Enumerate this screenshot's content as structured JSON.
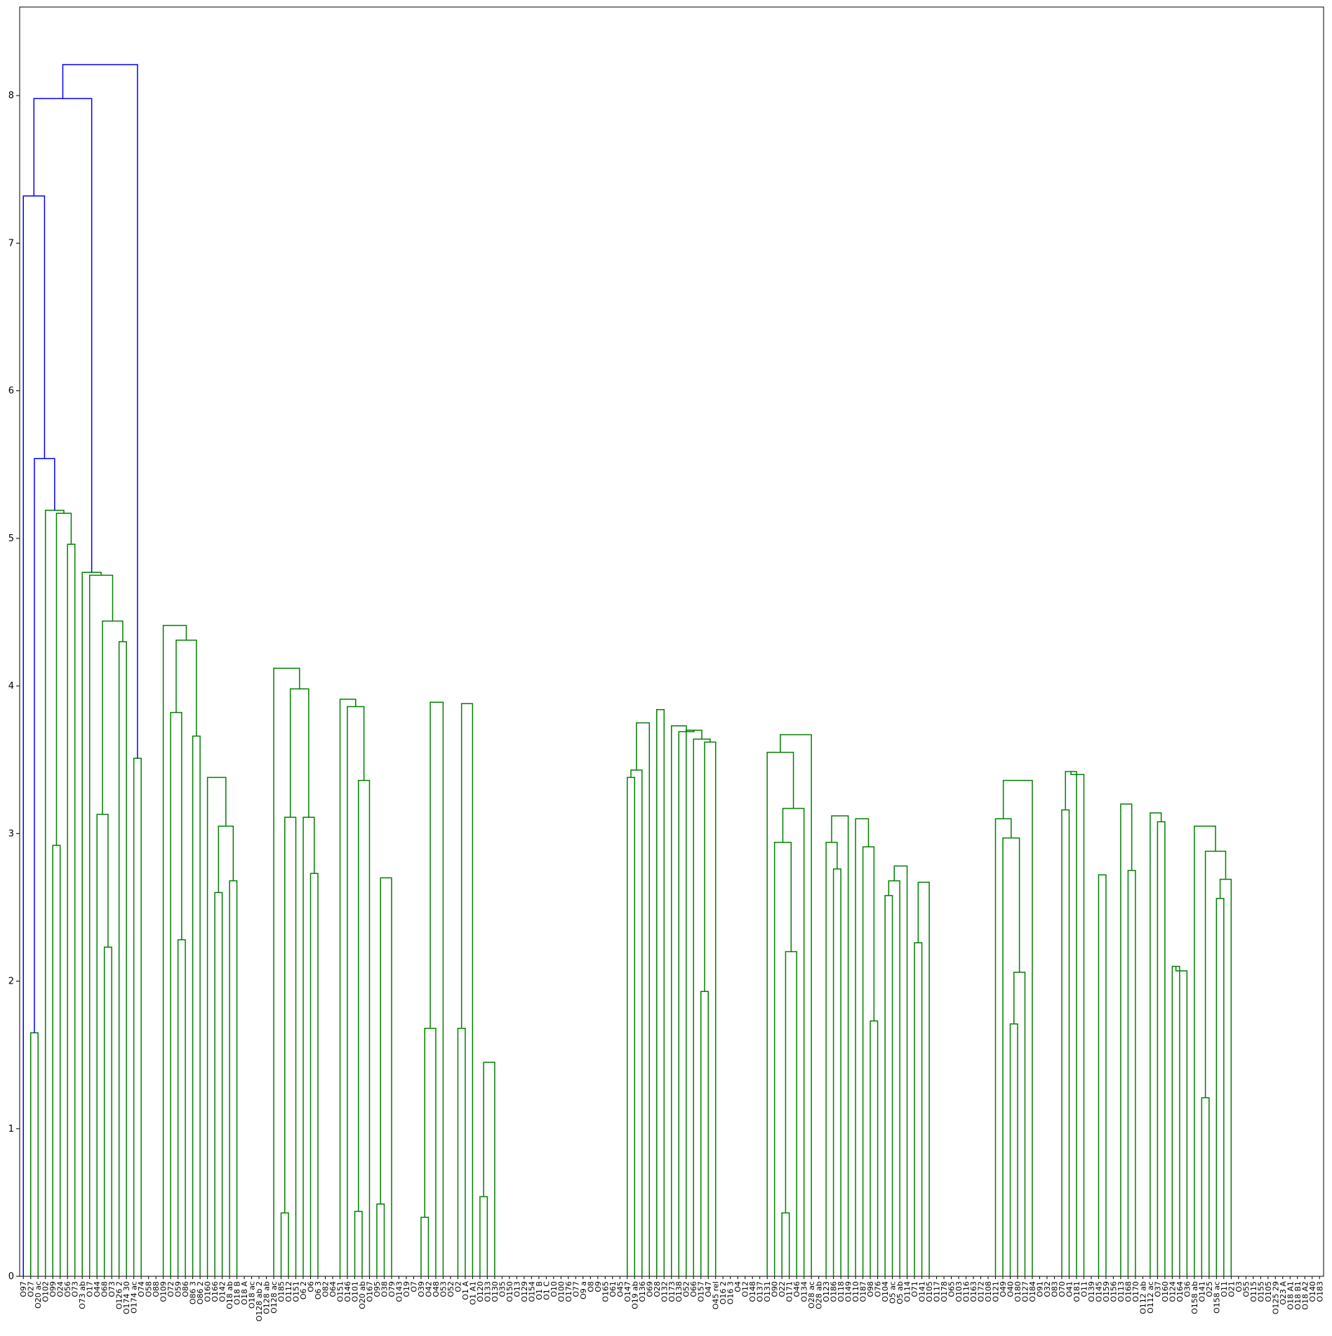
{
  "chart_data": {
    "type": "dendrogram",
    "title": "",
    "xlabel": "",
    "ylabel": "",
    "ylim": [
      0,
      8.6
    ],
    "yticks": [
      "0",
      "1",
      "2",
      "3",
      "4",
      "5",
      "6",
      "7",
      "8"
    ],
    "grid": false,
    "link_colors": {
      "top": "#0000ff",
      "cluster": "#008000"
    },
    "leaves": [
      "O97",
      "O27",
      "O20 ac",
      "O102",
      "O99",
      "O24",
      "O56",
      "O73",
      "O73 ab",
      "O17",
      "O44",
      "O68",
      "O73",
      "O126 2",
      "O174 30",
      "O174 ac",
      "O74",
      "O58",
      "O88",
      "O109",
      "O72",
      "O59",
      "O86",
      "O86 3",
      "O86 2",
      "O160",
      "O166",
      "O142",
      "O18 ab",
      "O18 B",
      "O18 A",
      "O18 ac",
      "O128 ab 2",
      "O128 ab",
      "O128 ac",
      "O185",
      "O112",
      "O151",
      "O6 2",
      "O6",
      "O6 3",
      "O82",
      "O64",
      "O151",
      "O146",
      "O101",
      "O20 ab",
      "O167",
      "O95",
      "O38",
      "O79",
      "O143",
      "O19",
      "O7",
      "O39",
      "O42",
      "O48",
      "O53",
      "O52",
      "O2",
      "O1 A",
      "O1 A1",
      "O120",
      "O133",
      "O130",
      "O35",
      "O150",
      "O13",
      "O129",
      "O154",
      "O1 B",
      "O1 C",
      "O10",
      "O100",
      "O176",
      "O77",
      "O9 a",
      "O8",
      "O9",
      "O165",
      "O61",
      "O45",
      "O147",
      "O19 ab",
      "O136",
      "O69",
      "O28",
      "O132",
      "O173",
      "O138",
      "O52",
      "O66",
      "O157",
      "O47",
      "O45 rel",
      "O16 2",
      "O16 3",
      "O4",
      "O12",
      "O148",
      "O137",
      "O131",
      "O90",
      "O22",
      "O171",
      "O46",
      "O134",
      "O28 ac",
      "O28 ab",
      "O123",
      "O186",
      "O118",
      "O149",
      "O110",
      "O187",
      "O98",
      "O76",
      "O104",
      "O5 ac",
      "O5 ab",
      "O114",
      "O71",
      "O141",
      "O105",
      "O117",
      "O178",
      "O65",
      "O103",
      "O116",
      "O163",
      "O172",
      "O108",
      "O121",
      "O49",
      "O40",
      "O180",
      "O127",
      "O184",
      "O91",
      "O32",
      "O83",
      "O70",
      "O41",
      "O181",
      "O11",
      "O139",
      "O145",
      "O159",
      "O156",
      "O113",
      "O168",
      "O170",
      "O112 ab",
      "O112 ac",
      "O37",
      "O160",
      "O124",
      "O164",
      "O36",
      "O158 ab",
      "O141",
      "O25",
      "O158 ac",
      "O11",
      "O21",
      "O3",
      "O55",
      "O115",
      "O155",
      "O105",
      "O125 29",
      "O23 A",
      "O18 A1",
      "O18 B1",
      "O18 A2",
      "O140",
      "O183"
    ],
    "links": [
      [
        1,
        1.65
      ],
      [
        3,
        2.92
      ],
      [
        9,
        2.23
      ],
      [
        8,
        3.13
      ],
      [
        11,
        3.51
      ],
      [
        9,
        4.3
      ],
      [
        15,
        2.28
      ],
      [
        19,
        2.6
      ],
      [
        20,
        2.68
      ],
      [
        19,
        3.05
      ],
      [
        18,
        3.38
      ],
      [
        16,
        3.66
      ],
      [
        14,
        3.82
      ],
      [
        22,
        0.43
      ],
      [
        22,
        3.11
      ],
      [
        24,
        2.73
      ],
      [
        23,
        3.11
      ],
      [
        28,
        0.44
      ],
      [
        30,
        0.49
      ],
      [
        30,
        2.7
      ],
      [
        28,
        3.36
      ],
      [
        27,
        3.86
      ],
      [
        32,
        0.4
      ],
      [
        32,
        1.68
      ],
      [
        35,
        1.68
      ],
      [
        37,
        0.54
      ],
      [
        37,
        1.45
      ],
      [
        35,
        3.88
      ],
      [
        32,
        3.89
      ],
      [
        26,
        3.91
      ],
      [
        22,
        3.98
      ],
      [
        21,
        4.12
      ],
      [
        14,
        4.31
      ],
      [
        13,
        4.41
      ],
      [
        8,
        4.44
      ],
      [
        7,
        4.75
      ],
      [
        6,
        4.77
      ],
      [
        4,
        4.96
      ],
      [
        44,
        3.38
      ],
      [
        44,
        3.43
      ],
      [
        44,
        3.75
      ],
      [
        51,
        1.93
      ],
      [
        51,
        3.62
      ],
      [
        50,
        3.64
      ],
      [
        49,
        3.7
      ],
      [
        58,
        0.43
      ],
      [
        58,
        2.2
      ],
      [
        57,
        2.94
      ],
      [
        62,
        2.76
      ],
      [
        61,
        2.94
      ],
      [
        65,
        1.73
      ],
      [
        66,
        2.58
      ],
      [
        66,
        2.68
      ],
      [
        68,
        2.26
      ],
      [
        68,
        2.67
      ],
      [
        66,
        2.78
      ],
      [
        64,
        2.91
      ],
      [
        63,
        3.1
      ],
      [
        61,
        3.12
      ],
      [
        57,
        3.17
      ],
      [
        74,
        1.71
      ],
      [
        74,
        2.06
      ],
      [
        73,
        2.97
      ],
      [
        72,
        3.1
      ],
      [
        77,
        3.16
      ],
      [
        72,
        3.36
      ],
      [
        76,
        3.42
      ],
      [
        79,
        2.72
      ],
      [
        76,
        3.4
      ],
      [
        81,
        2.75
      ],
      [
        86,
        2.1
      ],
      [
        86,
        2.07
      ],
      [
        88,
        1.21
      ],
      [
        89,
        2.56
      ],
      [
        89,
        2.69
      ],
      [
        88,
        2.88
      ],
      [
        87,
        3.05
      ],
      [
        84,
        3.08
      ],
      [
        83,
        3.14
      ],
      [
        80,
        3.2
      ],
      [
        101,
        0.4
      ],
      [
        101,
        2.78
      ],
      [
        100,
        3.05
      ],
      [
        104,
        2.85
      ],
      [
        105,
        1.92
      ],
      [
        104,
        2.85
      ],
      [
        108,
        2.68
      ],
      [
        109,
        2.78
      ],
      [
        110,
        2.73
      ],
      [
        108,
        2.83
      ],
      [
        107,
        2.91
      ],
      [
        103,
        3.0
      ],
      [
        115,
        2.08
      ],
      [
        116,
        2.09
      ],
      [
        117,
        1.94
      ],
      [
        116,
        2.35
      ],
      [
        120,
        2.3
      ],
      [
        121,
        1.25
      ],
      [
        122,
        2.24
      ],
      [
        123,
        2.03
      ],
      [
        124,
        2.4
      ],
      [
        122,
        2.55
      ],
      [
        121,
        2.6
      ],
      [
        115,
        2.86
      ],
      [
        128,
        2.94
      ],
      [
        129,
        2.82
      ],
      [
        130,
        2.69
      ],
      [
        129,
        2.97
      ],
      [
        131,
        2.96
      ],
      [
        133,
        2.25
      ],
      [
        127,
        3.0
      ],
      [
        114,
        3.03
      ],
      [
        103,
        3.1
      ],
      [
        99,
        3.13
      ],
      [
        98,
        3.16
      ],
      [
        98,
        3.19
      ],
      [
        56,
        3.55
      ],
      [
        56,
        3.67
      ],
      [
        48,
        3.69
      ],
      [
        136,
        1.62
      ],
      [
        140,
        2.28
      ],
      [
        142,
        1.72
      ],
      [
        143,
        2.68
      ],
      [
        144,
        2.56
      ],
      [
        144,
        2.42
      ],
      [
        142,
        3.09
      ],
      [
        141,
        3.19
      ],
      [
        140,
        3.25
      ],
      [
        139,
        3.27
      ],
      [
        138,
        3.52
      ],
      [
        148,
        1.96
      ],
      [
        150,
        2.75
      ],
      [
        148,
        3.6
      ],
      [
        138,
        3.62
      ],
      [
        47,
        3.73
      ],
      [
        45,
        3.84
      ],
      [
        3,
        5.17
      ],
      [
        156,
        1.21
      ],
      [
        158,
        3.46
      ],
      [
        161,
        3.09
      ],
      [
        160,
        3.33
      ],
      [
        159,
        3.59
      ],
      [
        158,
        3.64
      ],
      [
        162,
        4.34
      ],
      [
        163,
        4.49
      ],
      [
        162,
        4.51
      ],
      [
        157,
        4.79
      ],
      [
        155,
        4.83
      ],
      [
        170,
        1.64
      ],
      [
        169,
        2.92
      ],
      [
        168,
        4.26
      ],
      [
        167,
        4.34
      ],
      [
        173,
        2.99
      ],
      [
        172,
        4.57
      ],
      [
        167,
        4.8
      ],
      [
        165,
        4.93
      ],
      [
        165,
        5.03
      ],
      [
        155,
        5.08
      ],
      [
        2,
        5.19
      ],
      [
        1,
        5.54
      ],
      [
        0,
        7.32
      ],
      [
        0,
        7.98
      ],
      [
        0,
        8.21
      ]
    ]
  }
}
